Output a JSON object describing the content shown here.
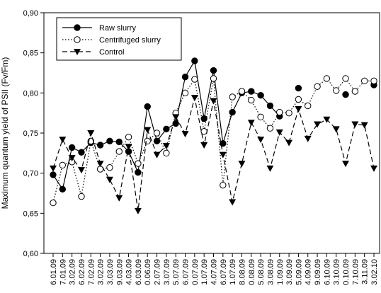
{
  "chart_data": {
    "type": "line",
    "y_label": "Maximum quantum yield of PSII (Fv/Fm)",
    "categories": [
      "6.01.09",
      "7.01.09",
      "3.02.09",
      "6.02.09",
      "7.02.09",
      "3.02.09",
      "3.03.09",
      "9.03.09",
      "4.03.09",
      "6.03.09",
      "0.06.09",
      "2.07.09",
      "3.07.09",
      "5.07.09",
      "6.07.09",
      "0.07.09",
      "1.07.09",
      "4.07.09",
      "6.07.09",
      "1.07.09",
      "8.08.09",
      "0.08.09",
      "5.08.09",
      "3.08.09",
      "1.09.09",
      "3.09.09",
      "5.09.09",
      "4.09.09",
      "9.09.09",
      "6.10.09",
      "3.10.09",
      "0.10.09",
      "7.10.09",
      "3.11.09",
      "3.02.10"
    ],
    "series": [
      {
        "name": "Raw slurry",
        "color": "#000000",
        "marker": "filled-circle",
        "dash": "solid",
        "values": [
          0.698,
          0.68,
          0.732,
          0.726,
          0.738,
          0.735,
          0.74,
          0.739,
          0.727,
          0.701,
          0.783,
          0.74,
          0.755,
          0.762,
          0.82,
          0.84,
          0.768,
          0.828,
          0.737,
          0.776,
          0.8,
          0.802,
          0.797,
          0.784,
          0.771,
          null,
          0.806,
          null,
          null,
          null,
          null,
          0.798,
          null,
          null,
          0.81
        ]
      },
      {
        "name": "Centrifuged slurry",
        "color": "#000000",
        "marker": "open-circle",
        "dash": "dotted",
        "values": [
          0.663,
          0.71,
          0.714,
          0.671,
          0.74,
          0.705,
          0.707,
          0.727,
          0.745,
          0.712,
          0.74,
          0.75,
          0.725,
          0.775,
          0.8,
          0.817,
          0.752,
          0.818,
          0.685,
          0.795,
          0.802,
          0.791,
          0.77,
          0.756,
          0.776,
          0.775,
          0.792,
          0.784,
          0.808,
          0.818,
          0.803,
          0.818,
          0.802,
          0.815,
          0.815
        ]
      },
      {
        "name": "Control",
        "color": "#000000",
        "marker": "triangle-down",
        "dash": "dashed",
        "values": [
          0.706,
          0.742,
          0.719,
          0.704,
          0.75,
          0.712,
          0.692,
          0.669,
          0.733,
          0.653,
          0.754,
          0.723,
          0.734,
          0.77,
          0.749,
          0.794,
          0.735,
          0.79,
          0.723,
          0.664,
          0.712,
          0.763,
          0.742,
          0.706,
          0.751,
          0.738,
          0.78,
          0.743,
          0.761,
          0.767,
          0.755,
          0.712,
          0.761,
          0.76,
          0.706
        ]
      }
    ],
    "ylim": [
      0.6,
      0.9
    ],
    "yticks": [
      {
        "value": 0.6,
        "label": "0,60"
      },
      {
        "value": 0.65,
        "label": "0,65"
      },
      {
        "value": 0.7,
        "label": "0,70"
      },
      {
        "value": 0.75,
        "label": "0,75"
      },
      {
        "value": 0.8,
        "label": "0,80"
      },
      {
        "value": 0.85,
        "label": "0,85"
      },
      {
        "value": 0.9,
        "label": "0,90"
      }
    ],
    "legend": "upper left"
  }
}
